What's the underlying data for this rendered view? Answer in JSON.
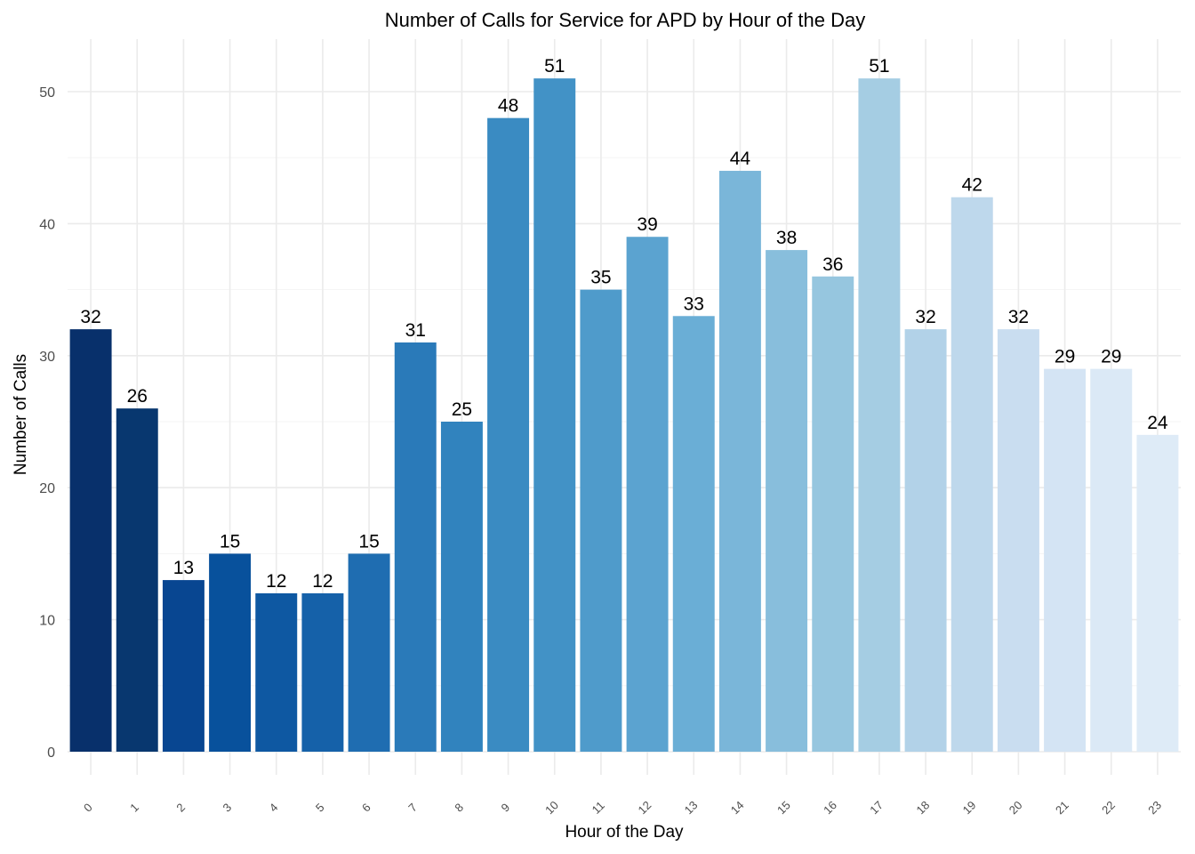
{
  "chart_data": {
    "type": "bar",
    "title": "Number of Calls for Service for APD by Hour of the Day",
    "xlabel": "Hour of the Day",
    "ylabel": "Number of Calls",
    "categories": [
      "0",
      "1",
      "2",
      "3",
      "4",
      "5",
      "6",
      "7",
      "8",
      "9",
      "10",
      "11",
      "12",
      "13",
      "14",
      "15",
      "16",
      "17",
      "18",
      "19",
      "20",
      "21",
      "22",
      "23"
    ],
    "values": [
      32,
      26,
      13,
      15,
      12,
      12,
      15,
      31,
      25,
      48,
      51,
      35,
      39,
      33,
      44,
      38,
      36,
      51,
      32,
      42,
      32,
      29,
      29,
      24
    ],
    "colors": [
      "#08306b",
      "#08376f",
      "#084691",
      "#08519c",
      "#0e58a2",
      "#1561a9",
      "#1f6db1",
      "#2a7ab9",
      "#3183be",
      "#3a8bc2",
      "#4292c6",
      "#4f9bcb",
      "#5ba3d0",
      "#6aaed6",
      "#7ab6d9",
      "#88bedc",
      "#96c6df",
      "#a5cde3",
      "#b2d2e8",
      "#bed8ec",
      "#c9ddf0",
      "#d4e4f4",
      "#dbe9f6",
      "#deebf7"
    ],
    "ylim": [
      0,
      53
    ],
    "yticks": [
      0,
      10,
      20,
      30,
      40,
      50
    ],
    "grid": true,
    "legend": "none"
  }
}
